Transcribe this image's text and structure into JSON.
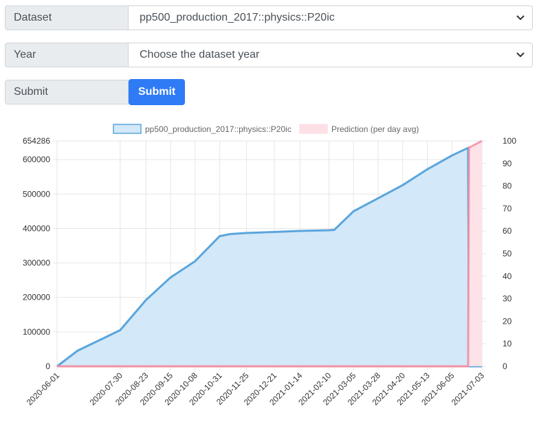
{
  "form": {
    "dataset_label": "Dataset",
    "dataset_value": "pp500_production_2017::physics::P20ic",
    "year_label": "Year",
    "year_value": "Choose the dataset year",
    "submit_label": "Submit",
    "submit_button": "Submit"
  },
  "colors": {
    "series_fill": "#d3e8f8",
    "series_stroke": "#5aa5dc",
    "prediction_fill": "#fde0e5",
    "prediction_stroke": "#f48ba0",
    "button": "#2f7bf5"
  },
  "chart_data": {
    "type": "area",
    "legend": [
      "pp500_production_2017::physics::P20ic",
      "Prediction (per day avg)"
    ],
    "legend_position": "top",
    "grid": true,
    "y_left": {
      "ticks": [
        0,
        100000,
        200000,
        300000,
        400000,
        500000,
        600000,
        654286
      ],
      "max": 654286
    },
    "y_right": {
      "ticks": [
        0,
        10,
        20,
        30,
        40,
        50,
        60,
        70,
        80,
        90,
        100
      ],
      "max": 100
    },
    "x_ticks": [
      "2020-06-01",
      "2020-07-30",
      "2020-08-23",
      "2020-09-15",
      "2020-10-08",
      "2020-10-31",
      "2020-11-25",
      "2020-12-21",
      "2021-01-14",
      "2021-02-10",
      "2021-03-05",
      "2021-03-28",
      "2021-04-20",
      "2021-05-13",
      "2021-06-05",
      "2021-07-03"
    ],
    "series": [
      {
        "name": "pp500_production_2017::physics::P20ic",
        "x": [
          "2020-06-01",
          "2020-06-20",
          "2020-07-30",
          "2020-08-23",
          "2020-09-15",
          "2020-10-08",
          "2020-10-31",
          "2020-11-10",
          "2020-11-25",
          "2020-12-21",
          "2021-01-14",
          "2021-02-10",
          "2021-02-15",
          "2021-03-05",
          "2021-03-28",
          "2021-04-20",
          "2021-05-13",
          "2021-06-05",
          "2021-06-20",
          "2021-06-21",
          "2021-07-03"
        ],
        "values": [
          0,
          45000,
          105000,
          192000,
          258000,
          305000,
          378000,
          384000,
          387000,
          390000,
          393000,
          395000,
          396000,
          450000,
          488000,
          526000,
          572000,
          612000,
          634000,
          0,
          0
        ]
      },
      {
        "name": "Prediction (per day avg)",
        "axis": "right",
        "x": [
          "2020-06-01",
          "2021-06-20",
          "2021-06-21",
          "2021-07-03"
        ],
        "values": [
          0,
          0,
          97,
          100
        ]
      }
    ]
  }
}
